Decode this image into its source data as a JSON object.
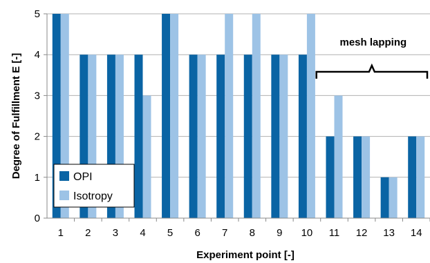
{
  "chart_data": {
    "type": "bar",
    "categories": [
      "1",
      "2",
      "3",
      "4",
      "5",
      "6",
      "7",
      "8",
      "9",
      "10",
      "11",
      "12",
      "13",
      "14"
    ],
    "series": [
      {
        "name": "OPI",
        "values": [
          5,
          4,
          4,
          4,
          5,
          4,
          4,
          4,
          4,
          4,
          2,
          2,
          1,
          2
        ],
        "color": "#0A64A4"
      },
      {
        "name": "Isotropy",
        "values": [
          5,
          4,
          4,
          3,
          5,
          4,
          5,
          5,
          4,
          5,
          3,
          2,
          1,
          2
        ],
        "color": "#9DC3E6"
      }
    ],
    "xlabel": "Experiment point [-]",
    "ylabel": "Degree of Fulfillment  E [-]",
    "ylim": [
      0,
      5
    ],
    "yticks": [
      "0",
      "1",
      "2",
      "3",
      "4",
      "5"
    ],
    "grid": "horizontal",
    "legend": "bottom-left",
    "annotation": {
      "text": "mesh lapping",
      "span": [
        "11",
        "14"
      ]
    }
  }
}
